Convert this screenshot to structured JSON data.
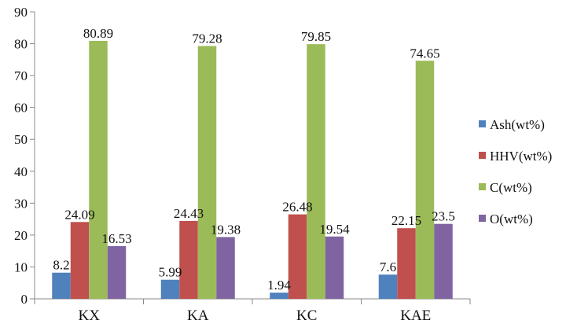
{
  "chart_data": {
    "type": "bar",
    "title": "",
    "xlabel": "",
    "ylabel": "",
    "categories": [
      "KX",
      "KA",
      "KC",
      "KAE"
    ],
    "series": [
      {
        "name": "Ash(wt%)",
        "color": "#4f81bd",
        "values": [
          8.2,
          5.99,
          1.94,
          7.6
        ],
        "labels": [
          "8.2",
          "5.99",
          "1.94",
          "7.6"
        ]
      },
      {
        "name": "HHV(wt%)",
        "color": "#c0504d",
        "values": [
          24.09,
          24.43,
          26.48,
          22.15
        ],
        "labels": [
          "24.09",
          "24.43",
          "26.48",
          "22.15"
        ]
      },
      {
        "name": "C(wt%)",
        "color": "#9bbb59",
        "values": [
          80.89,
          79.28,
          79.85,
          74.65
        ],
        "labels": [
          "80.89",
          "79.28",
          "79.85",
          "74.65"
        ]
      },
      {
        "name": "O(wt%)",
        "color": "#8064a2",
        "values": [
          16.53,
          19.38,
          19.54,
          23.5
        ],
        "labels": [
          "16.53",
          "19.38",
          "19.54",
          "23.5"
        ]
      }
    ],
    "ylim": [
      0,
      90
    ],
    "yticks": [
      "0",
      "10",
      "20",
      "30",
      "40",
      "50",
      "60",
      "70",
      "80",
      "90"
    ],
    "grid": false,
    "legend": "right"
  }
}
